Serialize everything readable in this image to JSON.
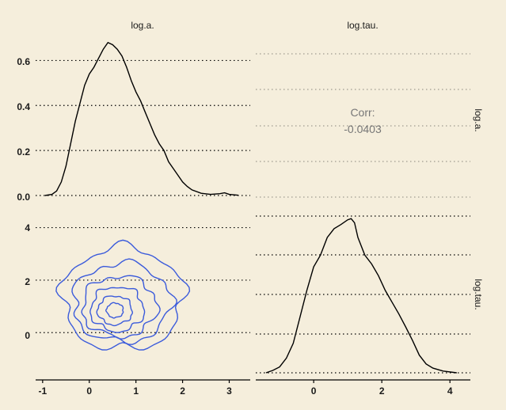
{
  "background": "#f5eedc",
  "chart_data": {
    "type": "pairs",
    "variables": [
      "log.a.",
      "log.tau."
    ],
    "colors": {
      "density": "#000000",
      "contour": "#3b5bdb",
      "corr_text": "#777777",
      "grid": "#000000"
    },
    "corr": {
      "label": "Corr:",
      "value": "-0.0403"
    },
    "panels": [
      {
        "id": "density-log-a",
        "type": "line",
        "title": "log.a.",
        "x_range": [
          -1.15,
          3.45
        ],
        "y_range": [
          0,
          0.7
        ],
        "y_ticks": [
          0,
          0.2,
          0.4,
          0.6
        ],
        "y_tick_labels": [
          "0.0",
          "0.2",
          "0.4",
          "0.6"
        ],
        "grid": "horizontal dotted",
        "points": [
          [
            -0.95,
            0.0
          ],
          [
            -0.8,
            0.005
          ],
          [
            -0.7,
            0.02
          ],
          [
            -0.6,
            0.06
          ],
          [
            -0.5,
            0.13
          ],
          [
            -0.4,
            0.23
          ],
          [
            -0.3,
            0.33
          ],
          [
            -0.2,
            0.41
          ],
          [
            -0.1,
            0.49
          ],
          [
            0.0,
            0.54
          ],
          [
            0.1,
            0.57
          ],
          [
            0.2,
            0.61
          ],
          [
            0.3,
            0.65
          ],
          [
            0.4,
            0.68
          ],
          [
            0.5,
            0.67
          ],
          [
            0.6,
            0.65
          ],
          [
            0.7,
            0.62
          ],
          [
            0.8,
            0.57
          ],
          [
            0.9,
            0.51
          ],
          [
            1.0,
            0.46
          ],
          [
            1.1,
            0.42
          ],
          [
            1.2,
            0.37
          ],
          [
            1.3,
            0.32
          ],
          [
            1.4,
            0.27
          ],
          [
            1.5,
            0.23
          ],
          [
            1.6,
            0.2
          ],
          [
            1.7,
            0.15
          ],
          [
            1.8,
            0.12
          ],
          [
            1.9,
            0.09
          ],
          [
            2.0,
            0.06
          ],
          [
            2.1,
            0.04
          ],
          [
            2.2,
            0.025
          ],
          [
            2.4,
            0.01
          ],
          [
            2.6,
            0.005
          ],
          [
            2.8,
            0.008
          ],
          [
            2.9,
            0.012
          ],
          [
            3.0,
            0.005
          ],
          [
            3.2,
            0.001
          ]
        ]
      },
      {
        "id": "contour-log-tau-vs-log-a",
        "type": "contour",
        "x_range": [
          -1.15,
          3.45
        ],
        "y_range": [
          -1.8,
          4.5
        ],
        "x_ticks": [
          -1,
          0,
          1,
          2,
          3
        ],
        "y_ticks": [
          0,
          2,
          4
        ],
        "y_tick_labels": [
          "0",
          "2",
          "4"
        ],
        "grid": "horizontal dotted",
        "levels": [
          {
            "center": [
              0.72,
              1.3
            ],
            "rx": 1.3,
            "ry": 1.95,
            "wobble": 0.07
          },
          {
            "center": [
              0.7,
              1.15
            ],
            "rx": 1.05,
            "ry": 1.5,
            "wobble": 0.07
          },
          {
            "center": [
              0.65,
              1.0
            ],
            "rx": 0.8,
            "ry": 1.15,
            "wobble": 0.07
          },
          {
            "center": [
              0.6,
              0.9
            ],
            "rx": 0.57,
            "ry": 0.85,
            "wobble": 0.07
          },
          {
            "center": [
              0.55,
              0.85
            ],
            "rx": 0.37,
            "ry": 0.55,
            "wobble": 0.06
          },
          {
            "center": [
              0.55,
              0.85
            ],
            "rx": 0.18,
            "ry": 0.28,
            "wobble": 0.05
          }
        ]
      },
      {
        "id": "density-log-tau",
        "type": "line",
        "title": "log.tau.",
        "x_range": [
          -1.7,
          4.6
        ],
        "y_range": [
          0,
          0.265
        ],
        "x_ticks": [
          0,
          2,
          4
        ],
        "grid": "horizontal dotted",
        "points": [
          [
            -1.4,
            0.0
          ],
          [
            -1.2,
            0.004
          ],
          [
            -1.0,
            0.01
          ],
          [
            -0.8,
            0.025
          ],
          [
            -0.6,
            0.05
          ],
          [
            -0.4,
            0.095
          ],
          [
            -0.2,
            0.14
          ],
          [
            0.0,
            0.18
          ],
          [
            0.2,
            0.2
          ],
          [
            0.4,
            0.23
          ],
          [
            0.6,
            0.245
          ],
          [
            0.8,
            0.252
          ],
          [
            1.0,
            0.26
          ],
          [
            1.1,
            0.262
          ],
          [
            1.2,
            0.255
          ],
          [
            1.3,
            0.23
          ],
          [
            1.5,
            0.2
          ],
          [
            1.7,
            0.185
          ],
          [
            1.9,
            0.165
          ],
          [
            2.1,
            0.14
          ],
          [
            2.3,
            0.12
          ],
          [
            2.5,
            0.1
          ],
          [
            2.7,
            0.078
          ],
          [
            2.9,
            0.055
          ],
          [
            3.1,
            0.03
          ],
          [
            3.3,
            0.015
          ],
          [
            3.5,
            0.008
          ],
          [
            3.8,
            0.003
          ],
          [
            4.2,
            0.0
          ]
        ]
      }
    ]
  }
}
